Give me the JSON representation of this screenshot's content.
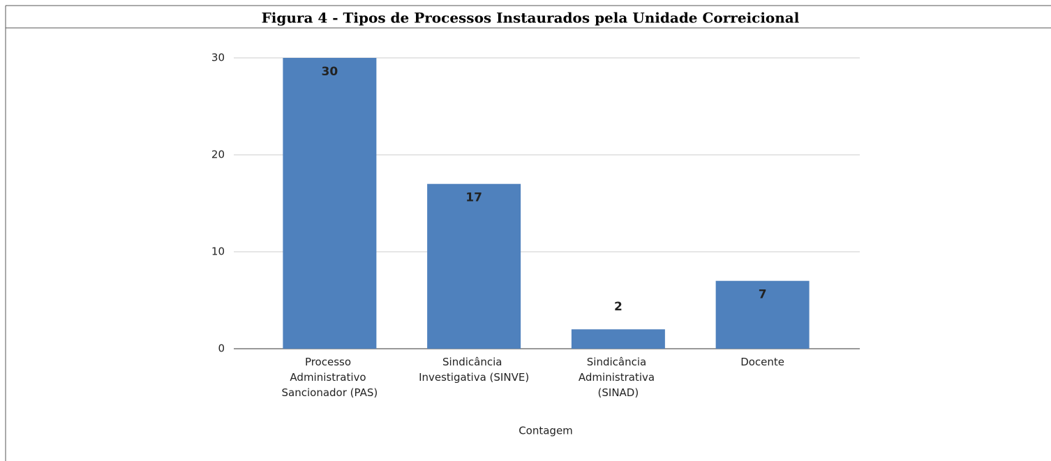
{
  "chart_data": {
    "type": "bar",
    "title": "Figura 4 - Tipos de Processos Instaurados pela Unidade Correicional",
    "categories": [
      "Processo Administrativo Sancionador (PAS)",
      "Sindicância Investigativa (SINVE)",
      "Sindicância Administrativa (SINAD)",
      "Docente"
    ],
    "values": [
      30,
      17,
      2,
      7
    ],
    "color": "#4f81bd",
    "xlabel": "Contagem",
    "ylim": [
      0,
      30
    ],
    "yticks": [
      0,
      10,
      20,
      30
    ],
    "grid": true
  }
}
